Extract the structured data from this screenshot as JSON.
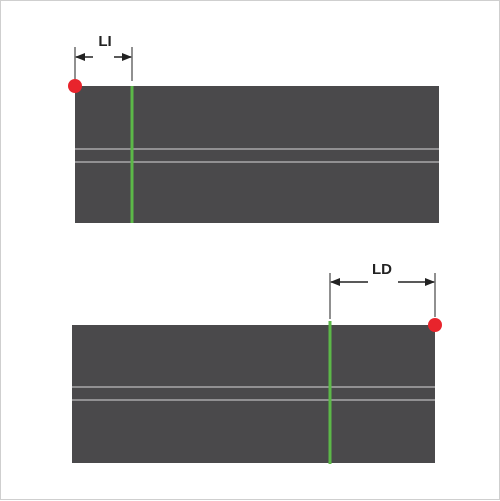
{
  "diagram": {
    "top": {
      "dimension_label": "LI"
    },
    "bottom": {
      "dimension_label": "LD"
    },
    "colors": {
      "panel": "#4a494b",
      "groove": "#d8d8d8",
      "guide_line": "#5cb848",
      "reference_dot": "#e8242c",
      "dimension": "#222222",
      "border": "#cfcfcf"
    }
  }
}
